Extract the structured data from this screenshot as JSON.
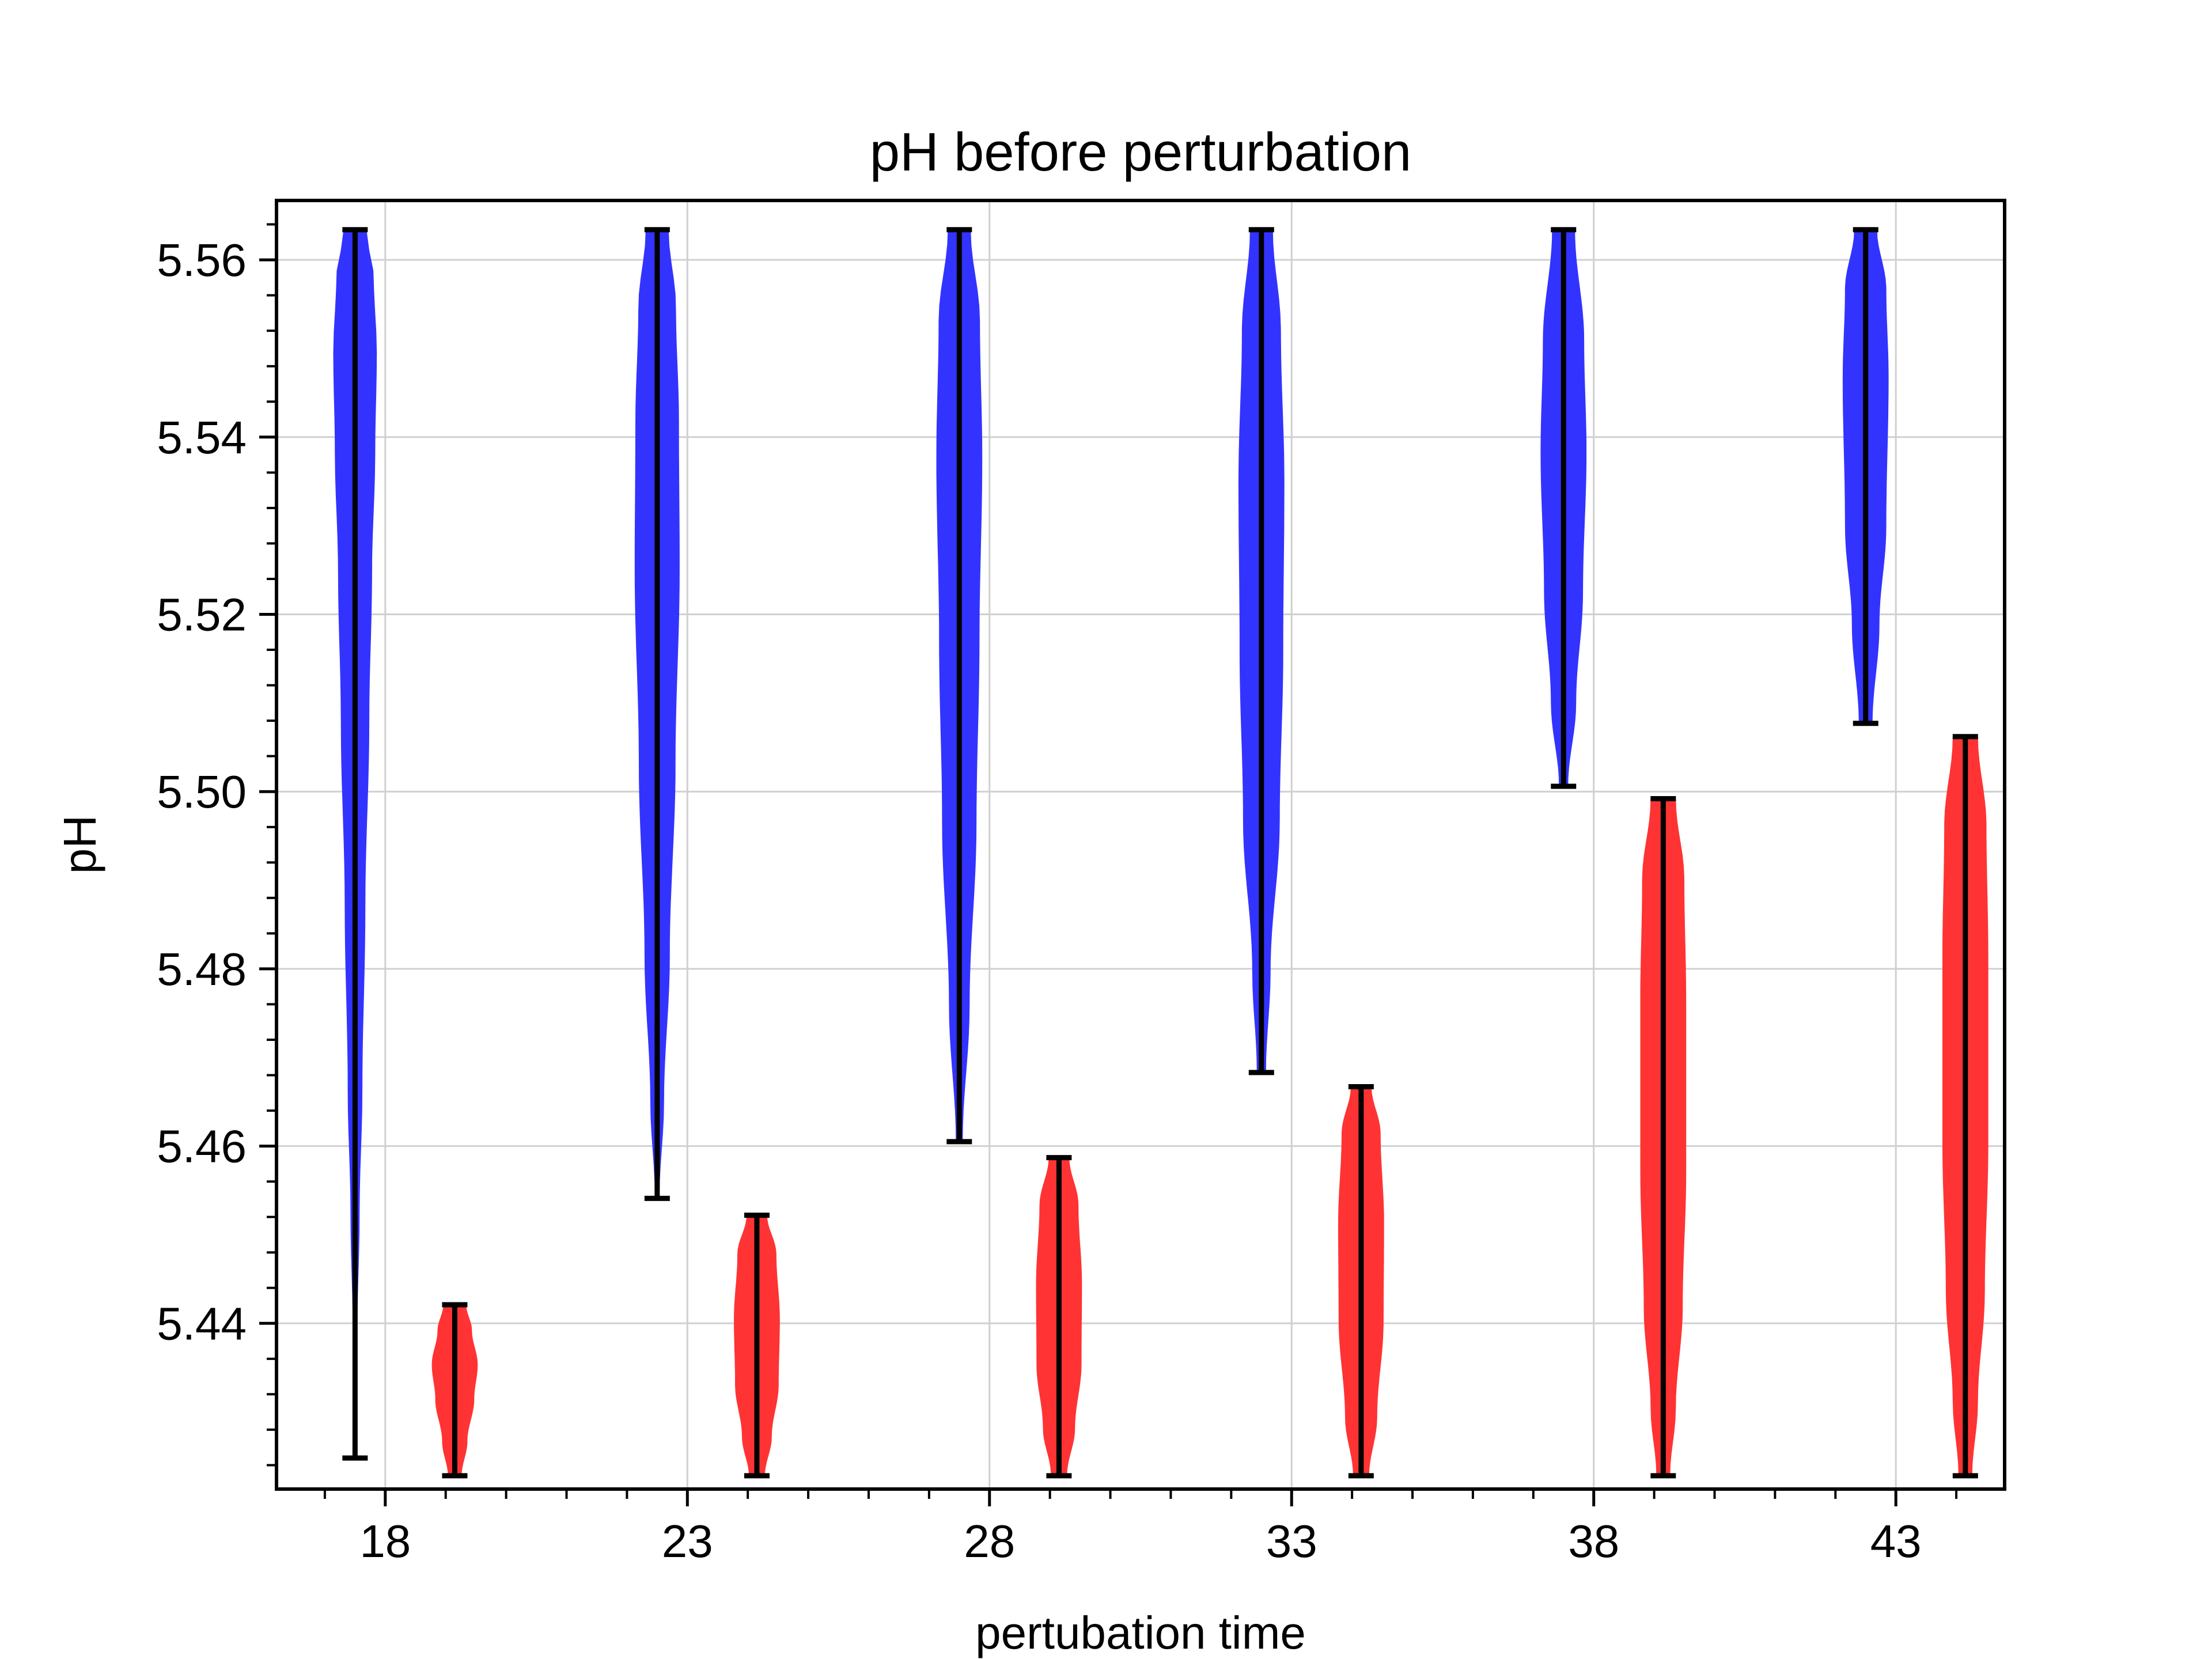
{
  "chart_data": {
    "type": "violin",
    "title": "pH before perturbation",
    "xlabel": "pertubation time",
    "ylabel": "pH",
    "xlim": [
      16.2,
      44.8
    ],
    "ylim": [
      5.4213,
      5.5667
    ],
    "x_ticks": [
      18,
      23,
      28,
      33,
      38,
      43
    ],
    "x_tick_labels": [
      "18",
      "23",
      "28",
      "33",
      "38",
      "43"
    ],
    "y_ticks": [
      5.44,
      5.46,
      5.48,
      5.5,
      5.52,
      5.54,
      5.56
    ],
    "y_tick_labels": [
      "5.44",
      "5.46",
      "5.48",
      "5.50",
      "5.52",
      "5.54",
      "5.56"
    ],
    "grid": true,
    "series": [
      {
        "color": "#3333ff",
        "violins": [
          {
            "x": 17.5,
            "min": 5.4248,
            "max": 5.5634,
            "profile": [
              [
                0,
                0.02
              ],
              [
                0.1,
                0.1
              ],
              [
                0.2,
                0.2
              ],
              [
                0.3,
                0.32
              ],
              [
                0.45,
                0.45
              ],
              [
                0.6,
                0.62
              ],
              [
                0.72,
                0.74
              ],
              [
                0.82,
                0.88
              ],
              [
                0.9,
                0.95
              ],
              [
                0.96,
                0.82
              ],
              [
                1,
                0.5
              ]
            ]
          },
          {
            "x": 22.5,
            "min": 5.4541,
            "max": 5.5634,
            "profile": [
              [
                0,
                0.1
              ],
              [
                0.1,
                0.3
              ],
              [
                0.25,
                0.55
              ],
              [
                0.45,
                0.8
              ],
              [
                0.65,
                0.98
              ],
              [
                0.8,
                0.95
              ],
              [
                0.92,
                0.82
              ],
              [
                1,
                0.5
              ]
            ]
          },
          {
            "x": 27.5,
            "min": 5.4605,
            "max": 5.5634,
            "profile": [
              [
                0,
                0.15
              ],
              [
                0.15,
                0.45
              ],
              [
                0.35,
                0.75
              ],
              [
                0.55,
                0.88
              ],
              [
                0.75,
                1.0
              ],
              [
                0.9,
                0.9
              ],
              [
                1,
                0.5
              ]
            ]
          },
          {
            "x": 32.5,
            "min": 5.4683,
            "max": 5.5634,
            "profile": [
              [
                0,
                0.2
              ],
              [
                0.12,
                0.4
              ],
              [
                0.3,
                0.8
              ],
              [
                0.5,
                0.95
              ],
              [
                0.7,
                1.0
              ],
              [
                0.88,
                0.85
              ],
              [
                1,
                0.5
              ]
            ]
          },
          {
            "x": 37.5,
            "min": 5.5006,
            "max": 5.5634,
            "profile": [
              [
                0,
                0.2
              ],
              [
                0.15,
                0.55
              ],
              [
                0.35,
                0.85
              ],
              [
                0.6,
                1.0
              ],
              [
                0.8,
                0.9
              ],
              [
                1,
                0.5
              ]
            ]
          },
          {
            "x": 42.5,
            "min": 5.5077,
            "max": 5.5634,
            "profile": [
              [
                0,
                0.3
              ],
              [
                0.2,
                0.6
              ],
              [
                0.4,
                0.9
              ],
              [
                0.7,
                1.0
              ],
              [
                0.88,
                0.9
              ],
              [
                1,
                0.5
              ]
            ]
          }
        ]
      },
      {
        "color": "#ff3333",
        "violins": [
          {
            "x": 19.15,
            "min": 5.4228,
            "max": 5.4421,
            "profile": [
              [
                0,
                0.3
              ],
              [
                0.2,
                0.55
              ],
              [
                0.45,
                0.85
              ],
              [
                0.65,
                1.0
              ],
              [
                0.85,
                0.75
              ],
              [
                1,
                0.5
              ]
            ]
          },
          {
            "x": 24.15,
            "min": 5.4228,
            "max": 5.4522,
            "profile": [
              [
                0,
                0.35
              ],
              [
                0.15,
                0.65
              ],
              [
                0.35,
                0.95
              ],
              [
                0.6,
                1.0
              ],
              [
                0.85,
                0.85
              ],
              [
                1,
                0.45
              ]
            ]
          },
          {
            "x": 29.15,
            "min": 5.4228,
            "max": 5.4587,
            "profile": [
              [
                0,
                0.35
              ],
              [
                0.15,
                0.7
              ],
              [
                0.35,
                0.98
              ],
              [
                0.6,
                1.0
              ],
              [
                0.85,
                0.85
              ],
              [
                1,
                0.45
              ]
            ]
          },
          {
            "x": 34.15,
            "min": 5.4228,
            "max": 5.4667,
            "profile": [
              [
                0,
                0.35
              ],
              [
                0.15,
                0.7
              ],
              [
                0.4,
                0.98
              ],
              [
                0.65,
                1.0
              ],
              [
                0.88,
                0.85
              ],
              [
                1,
                0.45
              ]
            ]
          },
          {
            "x": 39.15,
            "min": 5.4228,
            "max": 5.4992,
            "profile": [
              [
                0,
                0.3
              ],
              [
                0.1,
                0.55
              ],
              [
                0.25,
                0.85
              ],
              [
                0.45,
                1.0
              ],
              [
                0.7,
                1.0
              ],
              [
                0.88,
                0.92
              ],
              [
                1,
                0.55
              ]
            ]
          },
          {
            "x": 44.15,
            "min": 5.4228,
            "max": 5.5062,
            "profile": [
              [
                0,
                0.3
              ],
              [
                0.1,
                0.55
              ],
              [
                0.25,
                0.85
              ],
              [
                0.45,
                1.0
              ],
              [
                0.7,
                1.0
              ],
              [
                0.88,
                0.92
              ],
              [
                1,
                0.55
              ]
            ]
          }
        ]
      }
    ]
  }
}
